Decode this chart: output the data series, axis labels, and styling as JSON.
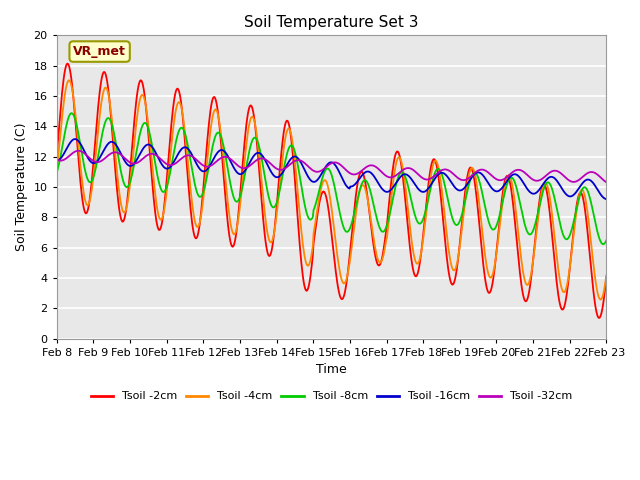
{
  "title": "Soil Temperature Set 3",
  "xlabel": "Time",
  "ylabel": "Soil Temperature (C)",
  "ylim": [
    0,
    20
  ],
  "xtick_labels": [
    "Feb 8",
    "Feb 9",
    "Feb 10",
    "Feb 11",
    "Feb 12",
    "Feb 13",
    "Feb 14",
    "Feb 15",
    "Feb 16",
    "Feb 17",
    "Feb 18",
    "Feb 19",
    "Feb 20",
    "Feb 21",
    "Feb 22",
    "Feb 23"
  ],
  "annotation_text": "VR_met",
  "colors": {
    "Tsoil -2cm": "#ff0000",
    "Tsoil -4cm": "#ff8800",
    "Tsoil -8cm": "#00cc00",
    "Tsoil -16cm": "#0000cc",
    "Tsoil -32cm": "#bb00bb"
  },
  "bg_color": "#e8e8e8",
  "title_fontsize": 11,
  "label_fontsize": 9,
  "tick_fontsize": 8
}
